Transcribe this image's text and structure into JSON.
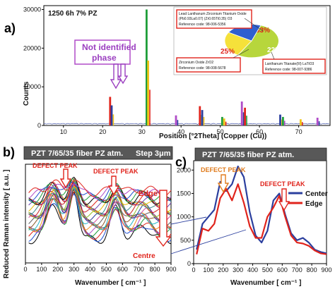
{
  "panels": {
    "a": "a)",
    "b": "b)",
    "c": "c)"
  },
  "xrd": {
    "sample_label": "1250 6h 7% PZ",
    "xlabel": "Position [°2Theta] (Copper (Cu))",
    "ylabel": "Counts",
    "x_ticks": [
      "10",
      "20",
      "30",
      "40",
      "50",
      "60",
      "70"
    ],
    "y_ticks": [
      "0",
      "10000",
      "20000",
      "30000"
    ],
    "annotation_l1": "Not identified",
    "annotation_l2": "phase",
    "inset": {
      "phase1_l1": "Lead Lanthanum Zirconium Titanium Oxide",
      "phase1_l2": "(Pb0.93La0.07) (Zr0.65Ti0.35) O3",
      "phase1_ref": "Reference code: 98-006-5356",
      "phase2_l1": "Zirconium Oxide ZrO2",
      "phase2_ref": "Reference code: 98-008-5678",
      "phase3_l1": "Lanthanum Titanate(III) LaTiO3",
      "phase3_ref": "Reference code: 98-007-9386"
    }
  },
  "raman_b": {
    "banner": "PZT 7/65/35 fiber PZ atm.",
    "step": "Step 3μm",
    "defect1": "DEFECT PEAK",
    "defect2": "DEFECT PEAK",
    "edge": "Edge",
    "centre": "Centre",
    "ylabel": "Reduced Raman intensity [ a.u. ]",
    "xlabel": "Wavenumber [ cm⁻¹ ]",
    "x_ticks": [
      "0",
      "100",
      "200",
      "300",
      "400",
      "500",
      "600",
      "700",
      "800",
      "900"
    ]
  },
  "raman_c": {
    "banner": "PZT 7/65/35 fiber  PZ atm.",
    "defect1": "DEFECT PEAK",
    "defect2": "DEFECT PEAK",
    "xlabel": "Wavenumber [ cm⁻¹ ]",
    "x_ticks": [
      "0",
      "100",
      "200",
      "300",
      "400",
      "500",
      "600",
      "700",
      "800",
      "900"
    ],
    "y_ticks": [
      "0",
      "500",
      "1000",
      "1500",
      "2000"
    ]
  },
  "chart_data": [
    {
      "type": "bar",
      "title": "1250 6h 7% PZ",
      "xlabel": "Position [°2Theta] (Copper (Cu))",
      "ylabel": "Counts",
      "xlim": [
        5,
        78
      ],
      "ylim": [
        0,
        31000
      ],
      "x": [
        21.9,
        22.3,
        31.2,
        31.6,
        38.7,
        44.8,
        45.4,
        50.5,
        51.0,
        55.5,
        56.3,
        65.3,
        66.0,
        70.5,
        74.8
      ],
      "values": [
        7400,
        5200,
        30000,
        16800,
        2600,
        5000,
        4000,
        2200,
        1800,
        6200,
        4600,
        2800,
        2200,
        1600,
        2000
      ]
    },
    {
      "type": "pie",
      "categories": [
        "Lead Lanthanum Zirconium Titanium Oxide",
        "Zirconium Oxide ZrO2",
        "Lanthanum Titanate(III) LaTiO3"
      ],
      "values": [
        53,
        25,
        22
      ],
      "labels": [
        "53%",
        "25%",
        "22%"
      ],
      "colors": [
        "#b7d63c",
        "#f5e13a",
        "#2f5fd0"
      ]
    },
    {
      "type": "line",
      "title": "PZT 7/65/35 fiber PZ atm.",
      "xlabel": "Wavenumber [ cm⁻¹ ]",
      "ylabel": "Reduced Raman intensity [ a.u. ]",
      "xlim": [
        0,
        900
      ],
      "series_count": 22,
      "series_labels": [
        "Edge",
        "Centre"
      ]
    },
    {
      "type": "line",
      "title": "PZT 7/65/35 fiber  PZ atm.",
      "xlabel": "Wavenumber [ cm⁻¹ ]",
      "xlim": [
        0,
        900
      ],
      "ylim": [
        0,
        2200
      ],
      "series": [
        {
          "name": "Center",
          "color": "#2b3f9e",
          "x": [
            20,
            60,
            100,
            140,
            180,
            220,
            260,
            300,
            340,
            380,
            420,
            460,
            500,
            540,
            580,
            620,
            660,
            700,
            740,
            780,
            820,
            860,
            900
          ],
          "values": [
            300,
            850,
            1000,
            1150,
            1750,
            1550,
            1700,
            2080,
            1850,
            1100,
            600,
            450,
            700,
            1350,
            1500,
            1050,
            650,
            500,
            550,
            450,
            300,
            250,
            220
          ]
        },
        {
          "name": "Edge",
          "color": "#e0241c",
          "x": [
            20,
            60,
            100,
            140,
            180,
            220,
            260,
            300,
            340,
            380,
            420,
            460,
            500,
            540,
            580,
            620,
            660,
            700,
            740,
            780,
            820,
            860,
            900
          ],
          "values": [
            200,
            750,
            700,
            850,
            1400,
            1600,
            1350,
            1700,
            1300,
            800,
            550,
            550,
            1000,
            1200,
            1450,
            1000,
            600,
            450,
            430,
            380,
            280,
            220,
            200
          ]
        }
      ]
    }
  ]
}
